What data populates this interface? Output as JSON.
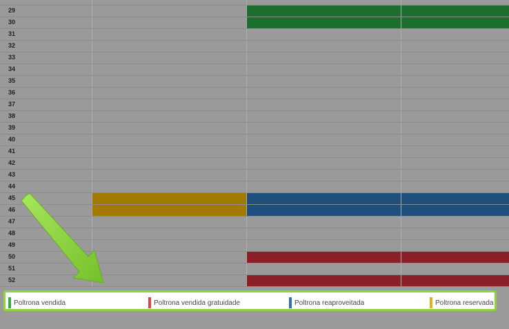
{
  "rows": [
    {
      "num": "",
      "cells": [
        "",
        "",
        "",
        ""
      ]
    },
    {
      "num": "29",
      "cells": [
        "",
        "",
        "sold",
        "sold"
      ]
    },
    {
      "num": "30",
      "cells": [
        "",
        "",
        "sold",
        "sold"
      ]
    },
    {
      "num": "31",
      "cells": [
        "",
        "",
        "",
        ""
      ]
    },
    {
      "num": "32",
      "cells": [
        "",
        "",
        "",
        ""
      ]
    },
    {
      "num": "33",
      "cells": [
        "",
        "",
        "",
        ""
      ]
    },
    {
      "num": "34",
      "cells": [
        "",
        "",
        "",
        ""
      ]
    },
    {
      "num": "35",
      "cells": [
        "",
        "",
        "",
        ""
      ]
    },
    {
      "num": "36",
      "cells": [
        "",
        "",
        "",
        ""
      ]
    },
    {
      "num": "37",
      "cells": [
        "",
        "",
        "",
        ""
      ]
    },
    {
      "num": "38",
      "cells": [
        "",
        "",
        "",
        ""
      ]
    },
    {
      "num": "39",
      "cells": [
        "",
        "",
        "",
        ""
      ]
    },
    {
      "num": "40",
      "cells": [
        "",
        "",
        "",
        ""
      ]
    },
    {
      "num": "41",
      "cells": [
        "",
        "",
        "",
        ""
      ]
    },
    {
      "num": "42",
      "cells": [
        "",
        "",
        "",
        ""
      ]
    },
    {
      "num": "43",
      "cells": [
        "",
        "",
        "",
        ""
      ]
    },
    {
      "num": "44",
      "cells": [
        "",
        "",
        "",
        ""
      ]
    },
    {
      "num": "45",
      "cells": [
        "",
        "reserved",
        "reused",
        "reused"
      ]
    },
    {
      "num": "46",
      "cells": [
        "",
        "reserved",
        "reused",
        "reused"
      ]
    },
    {
      "num": "47",
      "cells": [
        "",
        "",
        "",
        ""
      ]
    },
    {
      "num": "48",
      "cells": [
        "",
        "",
        "",
        ""
      ]
    },
    {
      "num": "49",
      "cells": [
        "",
        "",
        "",
        ""
      ]
    },
    {
      "num": "50",
      "cells": [
        "",
        "",
        "free",
        "free"
      ]
    },
    {
      "num": "51",
      "cells": [
        "",
        "",
        "",
        ""
      ]
    },
    {
      "num": "52",
      "cells": [
        "",
        "",
        "free",
        "free"
      ]
    }
  ],
  "status_colors": {
    "sold": "#1d6e2e",
    "free": "#8a1f27",
    "reused": "#1f4f7d",
    "reserved": "#a37a00"
  },
  "legend": [
    {
      "label": "Poltrona vendida",
      "color": "#3aa84a"
    },
    {
      "label": "Poltrona vendida gratuidade",
      "color": "#d9434e"
    },
    {
      "label": "Poltrona reaproveitada",
      "color": "#2f6fb5"
    },
    {
      "label": "Poltrona reservada",
      "color": "#e0b020"
    }
  ],
  "annotation": {
    "type": "arrow",
    "color": "#8dd43a"
  }
}
